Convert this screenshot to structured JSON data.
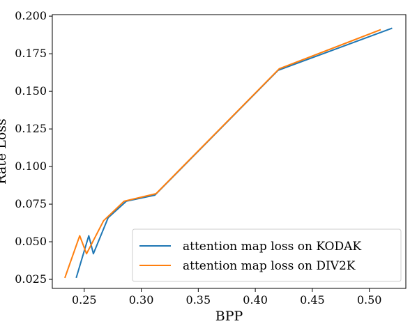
{
  "chart_data": {
    "type": "line",
    "xlabel": "BPP",
    "ylabel": "Rate Loss",
    "xlim": [
      0.222,
      0.532
    ],
    "ylim": [
      0.019,
      0.201
    ],
    "xticks": [
      0.25,
      0.3,
      0.35,
      0.4,
      0.45,
      0.5
    ],
    "xtick_labels": [
      "0.25",
      "0.30",
      "0.35",
      "0.40",
      "0.45",
      "0.50"
    ],
    "yticks": [
      0.025,
      0.05,
      0.075,
      0.1,
      0.125,
      0.15,
      0.175,
      0.2
    ],
    "ytick_labels": [
      "0.025",
      "0.050",
      "0.075",
      "0.100",
      "0.125",
      "0.150",
      "0.175",
      "0.200"
    ],
    "grid": false,
    "legend_position": "lower-right",
    "series": [
      {
        "name": "attention map loss on KODAK",
        "color": "#1f77b4",
        "x": [
          0.243,
          0.254,
          0.258,
          0.271,
          0.287,
          0.312,
          0.42,
          0.52
        ],
        "y": [
          0.026,
          0.054,
          0.042,
          0.066,
          0.077,
          0.081,
          0.164,
          0.192
        ]
      },
      {
        "name": "attention map loss on DIV2K",
        "color": "#ff7f0e",
        "x": [
          0.233,
          0.246,
          0.252,
          0.267,
          0.285,
          0.313,
          0.421,
          0.51
        ],
        "y": [
          0.026,
          0.054,
          0.042,
          0.064,
          0.077,
          0.082,
          0.165,
          0.191
        ]
      }
    ]
  }
}
